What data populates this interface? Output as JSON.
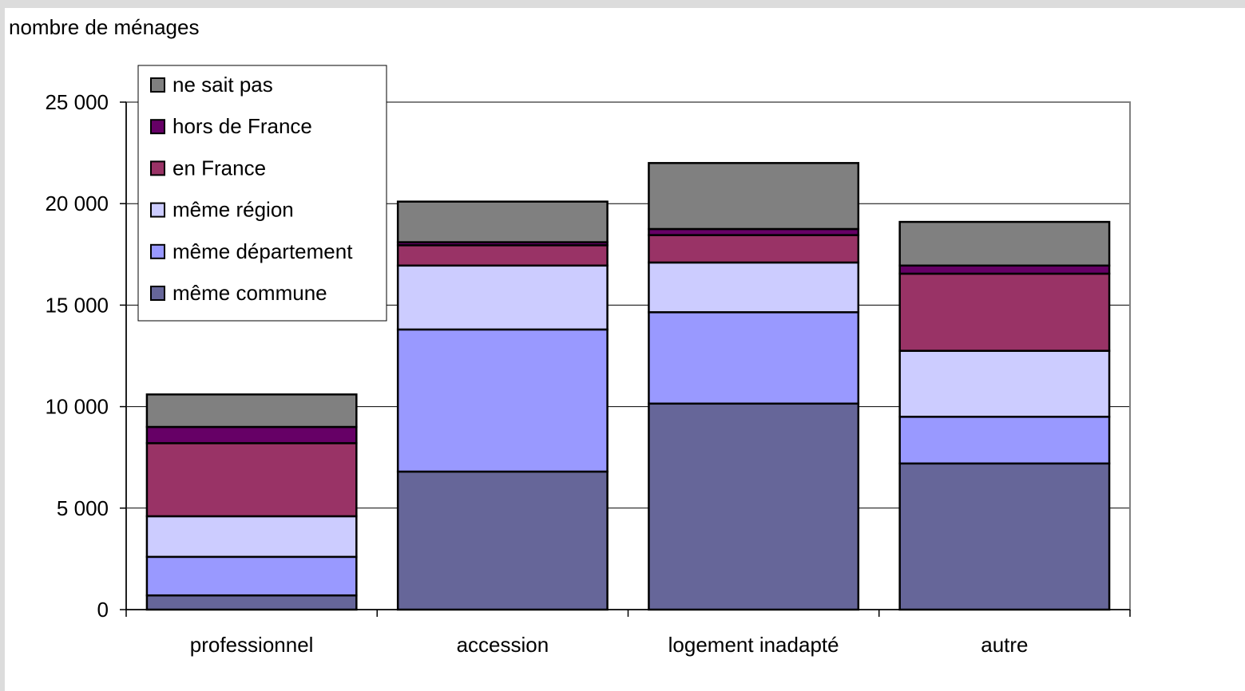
{
  "chart_data": {
    "type": "bar",
    "stacked": true,
    "ylabel": "nombre de ménages",
    "ylim": [
      0,
      25000
    ],
    "yticks": [
      0,
      5000,
      10000,
      15000,
      20000,
      25000
    ],
    "ytick_labels": [
      "0",
      "5 000",
      "10 000",
      "15 000",
      "20 000",
      "25 000"
    ],
    "grid": true,
    "legend_position": "top-left",
    "categories": [
      "professionnel",
      "accession",
      "logement inadapté",
      "autre"
    ],
    "series": [
      {
        "name": "même commune",
        "color": "#666699",
        "values": [
          700,
          6800,
          10150,
          7200
        ]
      },
      {
        "name": "même département",
        "color": "#9999ff",
        "values": [
          1900,
          7000,
          4500,
          2300
        ]
      },
      {
        "name": "même région",
        "color": "#ccccff",
        "values": [
          2000,
          3150,
          2450,
          3250
        ]
      },
      {
        "name": "en France",
        "color": "#993366",
        "values": [
          3600,
          1000,
          1350,
          3800
        ]
      },
      {
        "name": "hors de France",
        "color": "#660066",
        "values": [
          800,
          150,
          300,
          400
        ]
      },
      {
        "name": "ne sait pas",
        "color": "#808080",
        "values": [
          1600,
          2000,
          3250,
          2150
        ]
      }
    ]
  }
}
